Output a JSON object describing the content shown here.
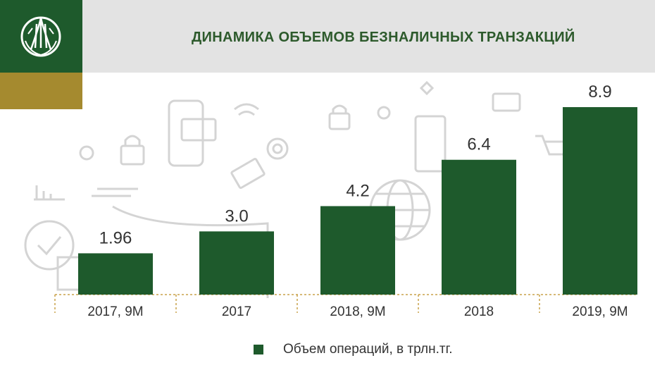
{
  "header": {
    "title": "ДИНАМИКА ОБЪЕМОВ БЕЗНАЛИЧНЫХ ТРАНЗАКЦИЙ",
    "logo_icon": "national-bank-emblem-icon"
  },
  "colors": {
    "brand_green": "#1e5a2c",
    "gold": "#a58a2f",
    "header_gray": "#e3e3e3",
    "axis_gold": "#c8a24a"
  },
  "chart_data": {
    "type": "bar",
    "title": "ДИНАМИКА ОБЪЕМОВ БЕЗНАЛИЧНЫХ ТРАНЗАКЦИЙ",
    "categories": [
      "2017, 9М",
      "2017",
      "2018, 9М",
      "2018",
      "2019, 9М"
    ],
    "series": [
      {
        "name": "Объем операций, в трлн.тг.",
        "values": [
          1.96,
          3.0,
          4.2,
          6.4,
          8.9
        ],
        "labels": [
          "1.96",
          "3.0",
          "4.2",
          "6.4",
          "8.9"
        ]
      }
    ],
    "xlabel": "",
    "ylabel": "",
    "ylim": [
      0,
      9.5
    ],
    "grid": false,
    "legend_position": "bottom"
  }
}
